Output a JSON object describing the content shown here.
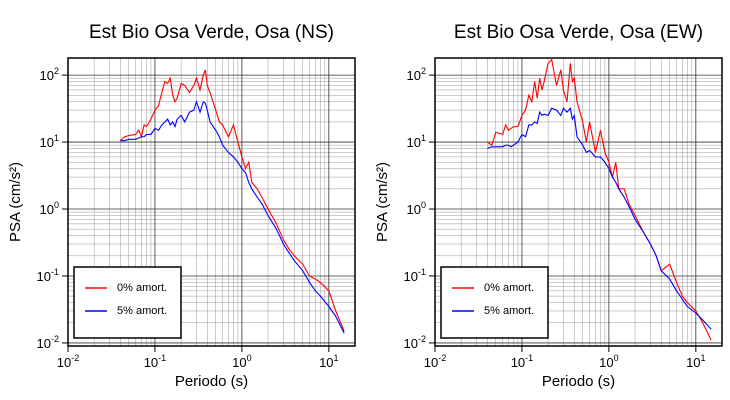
{
  "chart_data": [
    {
      "type": "line",
      "title": "Est Bio Osa Verde, Osa (NS)",
      "x_label": "Periodo (s)",
      "y_label": "PSA (cm/s²)",
      "log_x": true,
      "log_y": true,
      "grid": true,
      "legend": "lower left",
      "xlim": [
        0.01,
        20
      ],
      "ylim": [
        0.009,
        180
      ],
      "xticks": [
        {
          "value": 0.01,
          "label": "10^-2"
        },
        {
          "value": 0.1,
          "label": "10^-1"
        },
        {
          "value": 1,
          "label": "10^0"
        },
        {
          "value": 10,
          "label": "10^1"
        }
      ],
      "yticks": [
        {
          "value": 0.01,
          "label": "10^-2"
        },
        {
          "value": 0.1,
          "label": "10^-1"
        },
        {
          "value": 1,
          "label": "10^0"
        },
        {
          "value": 10,
          "label": "10^1"
        },
        {
          "value": 100,
          "label": "10^2"
        }
      ],
      "x": [
        0.04,
        0.045,
        0.05,
        0.06,
        0.065,
        0.07,
        0.075,
        0.08,
        0.09,
        0.1,
        0.11,
        0.12,
        0.13,
        0.14,
        0.15,
        0.16,
        0.17,
        0.18,
        0.2,
        0.22,
        0.25,
        0.28,
        0.3,
        0.33,
        0.36,
        0.38,
        0.4,
        0.43,
        0.5,
        0.55,
        0.6,
        0.7,
        0.8,
        0.9,
        1.0,
        1.1,
        1.2,
        1.3,
        1.5,
        1.7,
        2,
        2.5,
        3,
        3.5,
        4,
        5,
        6,
        7,
        8,
        10,
        12,
        15
      ],
      "series": [
        {
          "name": "0% amort.",
          "color": "#ff0000",
          "values": [
            10.5,
            12,
            12.5,
            13,
            15,
            12,
            18,
            17,
            22,
            30,
            35,
            55,
            80,
            75,
            90,
            50,
            40,
            45,
            75,
            70,
            55,
            70,
            90,
            60,
            100,
            120,
            70,
            55,
            30,
            20,
            18,
            12,
            18,
            10,
            6,
            4,
            5,
            2.5,
            2,
            1.5,
            1,
            0.6,
            0.35,
            0.25,
            0.2,
            0.15,
            0.1,
            0.09,
            0.08,
            0.06,
            0.03,
            0.015
          ]
        },
        {
          "name": "5% amort.",
          "color": "#0000ff",
          "values": [
            10.5,
            10.5,
            11,
            11,
            11.5,
            12,
            12,
            13,
            13,
            16,
            15,
            18,
            20,
            22,
            18,
            20,
            17,
            22,
            25,
            20,
            28,
            30,
            40,
            28,
            40,
            38,
            30,
            20,
            15,
            12,
            9,
            7,
            6,
            5,
            4,
            3.5,
            2.5,
            2,
            1.5,
            1.2,
            0.8,
            0.5,
            0.3,
            0.22,
            0.17,
            0.12,
            0.08,
            0.06,
            0.05,
            0.035,
            0.025,
            0.014
          ]
        }
      ]
    },
    {
      "type": "line",
      "title": "Est Bio Osa Verde, Osa (EW)",
      "x_label": "Periodo (s)",
      "y_label": "PSA (cm/s²)",
      "log_x": true,
      "log_y": true,
      "grid": true,
      "legend": "lower left",
      "xlim": [
        0.01,
        20
      ],
      "ylim": [
        0.009,
        180
      ],
      "xticks": [
        {
          "value": 0.01,
          "label": "10^-2"
        },
        {
          "value": 0.1,
          "label": "10^-1"
        },
        {
          "value": 1,
          "label": "10^0"
        },
        {
          "value": 10,
          "label": "10^1"
        }
      ],
      "yticks": [
        {
          "value": 0.01,
          "label": "10^-2"
        },
        {
          "value": 0.1,
          "label": "10^-1"
        },
        {
          "value": 1,
          "label": "10^0"
        },
        {
          "value": 10,
          "label": "10^1"
        },
        {
          "value": 100,
          "label": "10^2"
        }
      ],
      "x": [
        0.04,
        0.045,
        0.05,
        0.06,
        0.065,
        0.07,
        0.075,
        0.08,
        0.09,
        0.1,
        0.11,
        0.12,
        0.13,
        0.14,
        0.15,
        0.16,
        0.17,
        0.18,
        0.2,
        0.22,
        0.25,
        0.28,
        0.3,
        0.33,
        0.36,
        0.38,
        0.4,
        0.43,
        0.5,
        0.55,
        0.6,
        0.7,
        0.8,
        0.9,
        1.0,
        1.1,
        1.2,
        1.3,
        1.5,
        1.7,
        2,
        2.5,
        3,
        3.5,
        4,
        5,
        6,
        7,
        8,
        10,
        12,
        15
      ],
      "series": [
        {
          "name": "0% amort.",
          "color": "#ff0000",
          "values": [
            10,
            9,
            14,
            13,
            18,
            15,
            16,
            17,
            17,
            25,
            30,
            50,
            40,
            80,
            45,
            90,
            60,
            80,
            150,
            170,
            70,
            120,
            60,
            40,
            150,
            80,
            90,
            40,
            20,
            10,
            20,
            7,
            15,
            7,
            5,
            3,
            5,
            2,
            2,
            1.2,
            0.8,
            0.45,
            0.3,
            0.2,
            0.12,
            0.15,
            0.08,
            0.05,
            0.04,
            0.03,
            0.02,
            0.011
          ]
        },
        {
          "name": "5% amort.",
          "color": "#0000ff",
          "values": [
            8,
            8.5,
            8.5,
            8.5,
            9,
            9,
            8.5,
            9,
            10,
            13,
            12,
            18,
            18,
            20,
            19,
            28,
            25,
            26,
            25,
            32,
            30,
            25,
            32,
            28,
            32,
            22,
            25,
            12,
            9,
            7,
            7.5,
            6,
            6,
            5,
            4,
            3,
            2.5,
            2,
            1.5,
            1.1,
            0.7,
            0.45,
            0.3,
            0.2,
            0.12,
            0.09,
            0.06,
            0.045,
            0.035,
            0.028,
            0.022,
            0.016
          ]
        }
      ]
    }
  ]
}
